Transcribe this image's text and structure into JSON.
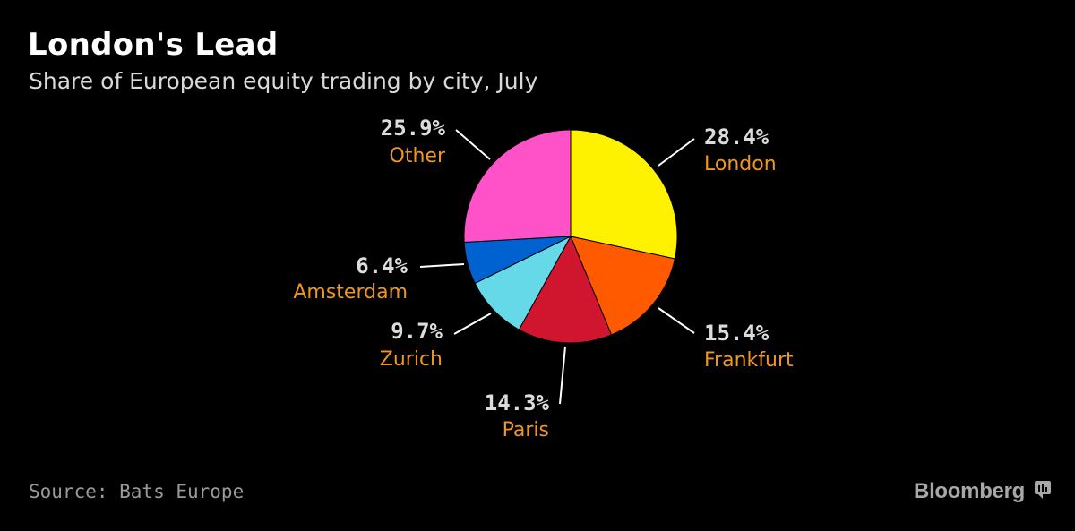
{
  "header": {
    "title": "London's Lead",
    "subtitle": "Share of European equity trading by city, July"
  },
  "footer": {
    "source": "Source: Bats Europe",
    "brand": "Bloomberg"
  },
  "colors": {
    "label_pct": "#dcdcdc",
    "label_name": "#f0961e",
    "leader": "#ffffff"
  },
  "chart_data": {
    "type": "pie",
    "title": "London's Lead",
    "subtitle": "Share of European equity trading by city, July",
    "unit": "%",
    "slices": [
      {
        "name": "London",
        "value": 28.4,
        "label": "28.4%",
        "color": "#fff200"
      },
      {
        "name": "Frankfurt",
        "value": 15.4,
        "label": "15.4%",
        "color": "#ff5a00"
      },
      {
        "name": "Paris",
        "value": 14.3,
        "label": "14.3%",
        "color": "#d0162f"
      },
      {
        "name": "Zurich",
        "value": 9.7,
        "label": "9.7%",
        "color": "#66d9e8"
      },
      {
        "name": "Amsterdam",
        "value": 6.4,
        "label": "6.4%",
        "color": "#0062d1"
      },
      {
        "name": "Other",
        "value": 25.9,
        "label": "25.9%",
        "color": "#ff52c8"
      }
    ]
  }
}
